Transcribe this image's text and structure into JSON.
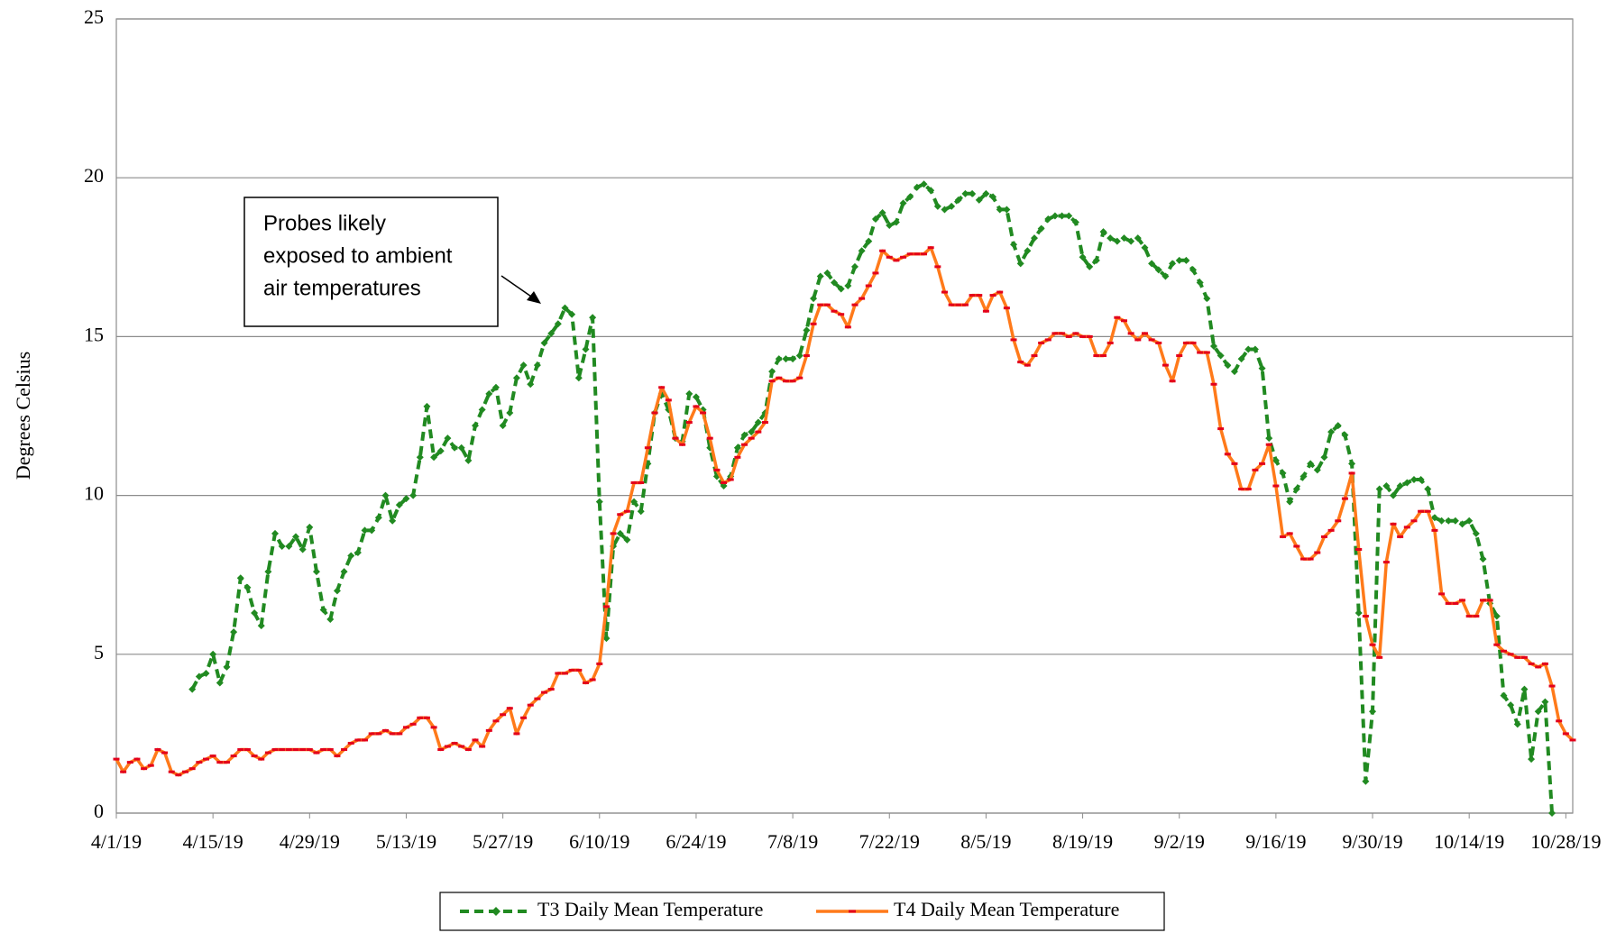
{
  "chart_data": {
    "type": "line",
    "y_label": "Degrees Celsius",
    "annotation": {
      "lines": [
        "Probes likely",
        "exposed to ambient",
        "air temperatures"
      ]
    },
    "categories": [
      "4/1/19",
      null,
      null,
      null,
      null,
      null,
      null,
      null,
      null,
      null,
      null,
      null,
      null,
      null,
      "4/15/19",
      null,
      null,
      null,
      null,
      null,
      null,
      null,
      null,
      null,
      null,
      null,
      null,
      null,
      "4/29/19",
      null,
      null,
      null,
      null,
      null,
      null,
      null,
      null,
      null,
      null,
      null,
      null,
      null,
      "5/13/19",
      null,
      null,
      null,
      null,
      null,
      null,
      null,
      null,
      null,
      null,
      null,
      null,
      null,
      "5/27/19",
      null,
      null,
      null,
      null,
      null,
      null,
      null,
      null,
      null,
      null,
      null,
      null,
      null,
      "6/10/19",
      null,
      null,
      null,
      null,
      null,
      null,
      null,
      null,
      null,
      null,
      null,
      null,
      null,
      "6/24/19",
      null,
      null,
      null,
      null,
      null,
      null,
      null,
      null,
      null,
      null,
      null,
      null,
      null,
      "7/8/19",
      null,
      null,
      null,
      null,
      null,
      null,
      null,
      null,
      null,
      null,
      null,
      null,
      null,
      "7/22/19",
      null,
      null,
      null,
      null,
      null,
      null,
      null,
      null,
      null,
      null,
      null,
      null,
      null,
      "8/5/19",
      null,
      null,
      null,
      null,
      null,
      null,
      null,
      null,
      null,
      null,
      null,
      null,
      null,
      "8/19/19",
      null,
      null,
      null,
      null,
      null,
      null,
      null,
      null,
      null,
      null,
      null,
      null,
      null,
      "9/2/19",
      null,
      null,
      null,
      null,
      null,
      null,
      null,
      null,
      null,
      null,
      null,
      null,
      null,
      "9/16/19",
      null,
      null,
      null,
      null,
      null,
      null,
      null,
      null,
      null,
      null,
      null,
      null,
      null,
      "9/30/19",
      null,
      null,
      null,
      null,
      null,
      null,
      null,
      null,
      null,
      null,
      null,
      null,
      null,
      "10/14/19",
      null,
      null,
      null,
      null,
      null,
      null,
      null,
      null,
      null,
      null,
      null,
      null,
      null,
      "10/28/19",
      null
    ],
    "series": [
      {
        "name": "T3 Daily Mean Temperature",
        "color": "#218a21",
        "line_style": "dashed",
        "marker": "diamond",
        "marker_color": "#218a21",
        "values": [
          null,
          null,
          null,
          null,
          null,
          null,
          null,
          null,
          null,
          null,
          null,
          3.9,
          4.3,
          4.4,
          5.0,
          4.1,
          4.6,
          5.7,
          7.4,
          7.1,
          6.3,
          5.9,
          7.6,
          8.8,
          8.4,
          8.4,
          8.7,
          8.3,
          9.0,
          7.6,
          6.4,
          6.1,
          7.0,
          7.6,
          8.1,
          8.2,
          8.9,
          8.9,
          9.3,
          10.0,
          9.2,
          9.7,
          9.9,
          10.0,
          11.2,
          12.8,
          11.2,
          11.4,
          11.8,
          11.5,
          11.5,
          11.1,
          12.2,
          12.7,
          13.2,
          13.4,
          12.2,
          12.6,
          13.7,
          14.1,
          13.5,
          14.1,
          14.8,
          15.1,
          15.4,
          15.9,
          15.7,
          13.7,
          14.6,
          15.6,
          9.8,
          5.5,
          8.4,
          8.8,
          8.6,
          9.8,
          9.5,
          11.0,
          12.6,
          13.2,
          12.7,
          11.8,
          11.7,
          13.2,
          13.1,
          12.7,
          11.5,
          10.6,
          10.3,
          10.6,
          11.5,
          11.9,
          12.0,
          12.3,
          12.6,
          13.9,
          14.3,
          14.3,
          14.3,
          14.4,
          15.2,
          16.2,
          16.9,
          17.0,
          16.7,
          16.5,
          16.6,
          17.2,
          17.7,
          18.0,
          18.7,
          18.9,
          18.5,
          18.6,
          19.2,
          19.4,
          19.7,
          19.8,
          19.6,
          19.1,
          19.0,
          19.1,
          19.3,
          19.5,
          19.5,
          19.3,
          19.5,
          19.4,
          19.0,
          19.0,
          17.9,
          17.3,
          17.7,
          18.1,
          18.4,
          18.7,
          18.8,
          18.8,
          18.8,
          18.6,
          17.5,
          17.2,
          17.4,
          18.3,
          18.1,
          18.0,
          18.1,
          18.0,
          18.1,
          17.8,
          17.3,
          17.1,
          16.9,
          17.3,
          17.4,
          17.4,
          17.1,
          16.7,
          16.2,
          14.7,
          14.4,
          14.1,
          13.9,
          14.3,
          14.6,
          14.6,
          14.0,
          11.8,
          11.1,
          10.7,
          9.8,
          10.2,
          10.6,
          11.0,
          10.8,
          11.2,
          12.0,
          12.2,
          11.9,
          11.0,
          6.3,
          1.0,
          3.2,
          10.2,
          10.3,
          10.0,
          10.3,
          10.4,
          10.5,
          10.5,
          10.2,
          9.3,
          9.2,
          9.2,
          9.2,
          9.1,
          9.2,
          8.8,
          8.0,
          6.6,
          6.2,
          3.7,
          3.4,
          2.8,
          3.9,
          1.7,
          3.2,
          3.5,
          0.0,
          null,
          null,
          null
        ]
      },
      {
        "name": "T4 Daily Mean Temperature",
        "color": "#ff7a1a",
        "line_style": "solid",
        "marker": "dash",
        "marker_color": "#e3001b",
        "values": [
          1.7,
          1.3,
          1.6,
          1.7,
          1.4,
          1.5,
          2.0,
          1.9,
          1.3,
          1.2,
          1.3,
          1.4,
          1.6,
          1.7,
          1.8,
          1.6,
          1.6,
          1.8,
          2.0,
          2.0,
          1.8,
          1.7,
          1.9,
          2.0,
          2.0,
          2.0,
          2.0,
          2.0,
          2.0,
          1.9,
          2.0,
          2.0,
          1.8,
          2.0,
          2.2,
          2.3,
          2.3,
          2.5,
          2.5,
          2.6,
          2.5,
          2.5,
          2.7,
          2.8,
          3.0,
          3.0,
          2.7,
          2.0,
          2.1,
          2.2,
          2.1,
          2.0,
          2.3,
          2.1,
          2.6,
          2.9,
          3.1,
          3.3,
          2.5,
          3.0,
          3.4,
          3.6,
          3.8,
          3.9,
          4.4,
          4.4,
          4.5,
          4.5,
          4.1,
          4.2,
          4.7,
          6.5,
          8.8,
          9.4,
          9.5,
          10.4,
          10.4,
          11.5,
          12.6,
          13.4,
          13.0,
          11.8,
          11.6,
          12.3,
          12.8,
          12.6,
          11.8,
          10.8,
          10.4,
          10.5,
          11.2,
          11.6,
          11.8,
          12.0,
          12.3,
          13.6,
          13.7,
          13.6,
          13.6,
          13.7,
          14.4,
          15.4,
          16.0,
          16.0,
          15.8,
          15.7,
          15.3,
          16.0,
          16.2,
          16.6,
          17.0,
          17.7,
          17.5,
          17.4,
          17.5,
          17.6,
          17.6,
          17.6,
          17.8,
          17.2,
          16.4,
          16.0,
          16.0,
          16.0,
          16.3,
          16.3,
          15.8,
          16.3,
          16.4,
          15.9,
          14.9,
          14.2,
          14.1,
          14.4,
          14.8,
          14.9,
          15.1,
          15.1,
          15.0,
          15.1,
          15.0,
          15.0,
          14.4,
          14.4,
          14.8,
          15.6,
          15.5,
          15.1,
          14.9,
          15.1,
          14.9,
          14.8,
          14.1,
          13.6,
          14.4,
          14.8,
          14.8,
          14.5,
          14.5,
          13.5,
          12.1,
          11.3,
          11.0,
          10.2,
          10.2,
          10.8,
          11.0,
          11.6,
          10.3,
          8.7,
          8.8,
          8.4,
          8.0,
          8.0,
          8.2,
          8.7,
          8.9,
          9.2,
          9.9,
          10.7,
          8.3,
          6.2,
          5.3,
          4.9,
          7.9,
          9.1,
          8.7,
          9.0,
          9.2,
          9.5,
          9.5,
          8.9,
          6.9,
          6.6,
          6.6,
          6.7,
          6.2,
          6.2,
          6.7,
          6.7,
          5.3,
          5.1,
          5.0,
          4.9,
          4.9,
          4.7,
          4.6,
          4.7,
          4.0,
          2.9,
          2.5,
          2.3
        ]
      }
    ],
    "ylim": [
      0,
      25
    ],
    "yticks": [
      0,
      5,
      10,
      15,
      20,
      25
    ],
    "grid": true,
    "legend": "bottom"
  }
}
